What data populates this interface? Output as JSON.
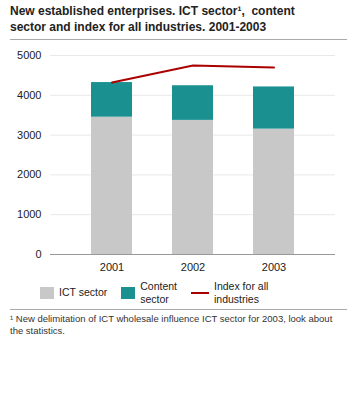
{
  "chart_data": {
    "type": "bar",
    "title": "New established enterprises. ICT sector¹,  content\nsector and index for all industries. 2001-2003",
    "footnote": "¹ New delimitation of ICT wholesale influence ICT sector for 2003, look about\nthe statistics.",
    "categories": [
      "2001",
      "2002",
      "2003"
    ],
    "series": [
      {
        "name": "ICT sector",
        "color": "#c8c8c8",
        "values": [
          3450,
          3370,
          3150
        ]
      },
      {
        "name": "Content\nsector",
        "color": "#1a9090",
        "values": [
          870,
          870,
          1060
        ]
      },
      {
        "name": "Index for all\nindustries",
        "color": "#aa0000",
        "type": "line",
        "values": [
          4320,
          4750,
          4700
        ]
      }
    ],
    "stacked": true,
    "ylim": [
      0,
      5000
    ],
    "yticks": [
      0,
      1000,
      2000,
      3000,
      4000,
      5000
    ],
    "grid": true,
    "legend": "bottom"
  }
}
